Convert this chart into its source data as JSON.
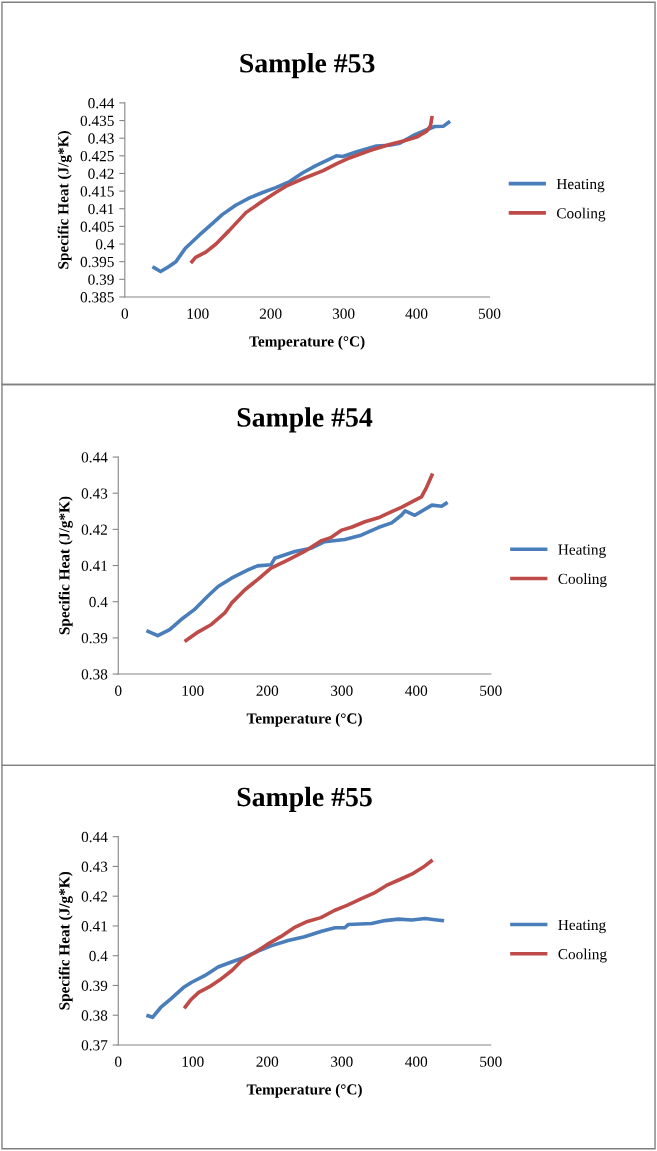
{
  "chart_data": [
    {
      "type": "line",
      "title": "Sample #53",
      "xlabel": "Temperature (°C)",
      "ylabel": "Specific Heat (J/g*K)",
      "xlim": [
        0,
        500
      ],
      "xticks": [
        0,
        100,
        200,
        300,
        400,
        500
      ],
      "ylim": [
        0.385,
        0.44
      ],
      "yticks": [
        0.385,
        0.39,
        0.395,
        0.4,
        0.405,
        0.41,
        0.415,
        0.42,
        0.425,
        0.43,
        0.435,
        0.44
      ],
      "grid": false,
      "legend": "right",
      "marker": "none",
      "line_style": "solid",
      "series": [
        {
          "name": "Heating",
          "color": "#4a7ebb",
          "x": [
            40,
            49,
            58,
            70,
            83,
            102,
            116,
            134,
            152,
            171,
            189,
            207,
            226,
            244,
            262,
            290,
            299,
            317,
            345,
            363,
            377,
            395,
            414,
            425,
            437,
            444
          ],
          "values": [
            0.3933,
            0.3922,
            0.3933,
            0.395,
            0.3988,
            0.4025,
            0.4051,
            0.4084,
            0.411,
            0.4131,
            0.4146,
            0.416,
            0.4177,
            0.4202,
            0.4222,
            0.425,
            0.4248,
            0.4261,
            0.4278,
            0.428,
            0.4286,
            0.4307,
            0.4324,
            0.4333,
            0.4334,
            0.4345
          ]
        },
        {
          "name": "Cooling",
          "color": "#be4b48",
          "x": [
            92,
            97,
            111,
            125,
            143,
            166,
            189,
            207,
            221,
            244,
            272,
            290,
            308,
            336,
            363,
            382,
            400,
            414,
            419,
            421
          ],
          "values": [
            0.395,
            0.3962,
            0.3977,
            0.4,
            0.4038,
            0.4089,
            0.4122,
            0.4146,
            0.4164,
            0.4185,
            0.4208,
            0.4227,
            0.4244,
            0.4265,
            0.4282,
            0.4292,
            0.4303,
            0.432,
            0.4334,
            0.4358
          ]
        }
      ]
    },
    {
      "type": "line",
      "title": "Sample #54",
      "xlabel": "Temperature (°C)",
      "ylabel": "Specific Heat (J/g*K)",
      "xlim": [
        0,
        500
      ],
      "xticks": [
        0,
        100,
        200,
        300,
        400,
        500
      ],
      "ylim": [
        0.38,
        0.44
      ],
      "yticks": [
        0.38,
        0.39,
        0.4,
        0.41,
        0.42,
        0.43,
        0.44
      ],
      "grid": false,
      "legend": "right",
      "marker": "none",
      "line_style": "solid",
      "series": [
        {
          "name": "Heating",
          "color": "#4a7ebb",
          "x": [
            40,
            53,
            69,
            84,
            102,
            120,
            134,
            152,
            174,
            187,
            205,
            210,
            237,
            259,
            277,
            304,
            326,
            349,
            367,
            380,
            385,
            398,
            421,
            434,
            440
          ],
          "values": [
            0.3918,
            0.3906,
            0.3923,
            0.395,
            0.3978,
            0.4015,
            0.4042,
            0.4065,
            0.4088,
            0.4099,
            0.4102,
            0.412,
            0.4139,
            0.4148,
            0.4166,
            0.4172,
            0.4184,
            0.4205,
            0.4218,
            0.4239,
            0.4251,
            0.4239,
            0.4267,
            0.4264,
            0.4272
          ]
        },
        {
          "name": "Cooling",
          "color": "#be4b48",
          "x": [
            91,
            107,
            125,
            143,
            152,
            170,
            187,
            205,
            228,
            250,
            273,
            286,
            300,
            313,
            331,
            349,
            367,
            380,
            394,
            407,
            414,
            418,
            421
          ],
          "values": [
            0.3893,
            0.3916,
            0.3937,
            0.3969,
            0.3996,
            0.4033,
            0.4061,
            0.4093,
            0.4116,
            0.4139,
            0.4169,
            0.4178,
            0.4198,
            0.4206,
            0.4221,
            0.4232,
            0.4249,
            0.4261,
            0.4276,
            0.429,
            0.4317,
            0.4336,
            0.435
          ]
        }
      ]
    },
    {
      "type": "line",
      "title": "Sample #55",
      "xlabel": "Temperature (°C)",
      "ylabel": "Specific Heat (J/g*K)",
      "xlim": [
        0,
        500
      ],
      "xticks": [
        0,
        100,
        200,
        300,
        400,
        500
      ],
      "ylim": [
        0.37,
        0.44
      ],
      "yticks": [
        0.37,
        0.38,
        0.39,
        0.4,
        0.41,
        0.42,
        0.43,
        0.44
      ],
      "grid": false,
      "legend": "right",
      "marker": "none",
      "line_style": "solid",
      "series": [
        {
          "name": "Heating",
          "color": "#4a7ebb",
          "x": [
            40,
            46,
            57,
            71,
            87,
            98,
            116,
            134,
            152,
            170,
            187,
            205,
            228,
            250,
            273,
            291,
            304,
            309,
            340,
            358,
            376,
            394,
            412,
            425,
            435
          ],
          "values": [
            0.3798,
            0.3793,
            0.3826,
            0.3856,
            0.3892,
            0.391,
            0.3933,
            0.3962,
            0.3979,
            0.3995,
            0.4015,
            0.4033,
            0.4051,
            0.4064,
            0.4082,
            0.4094,
            0.4094,
            0.4105,
            0.4108,
            0.4118,
            0.4123,
            0.412,
            0.4125,
            0.4121,
            0.4118
          ]
        },
        {
          "name": "Cooling",
          "color": "#be4b48",
          "x": [
            90,
            97,
            108,
            122,
            136,
            153,
            166,
            183,
            200,
            218,
            236,
            254,
            272,
            290,
            307,
            325,
            343,
            360,
            378,
            396,
            409,
            420
          ],
          "values": [
            0.3828,
            0.3851,
            0.3877,
            0.3895,
            0.3918,
            0.3951,
            0.3985,
            0.401,
            0.4038,
            0.4064,
            0.4094,
            0.4115,
            0.4128,
            0.4152,
            0.4169,
            0.419,
            0.421,
            0.4236,
            0.4256,
            0.4277,
            0.4297,
            0.4318
          ]
        }
      ]
    }
  ]
}
